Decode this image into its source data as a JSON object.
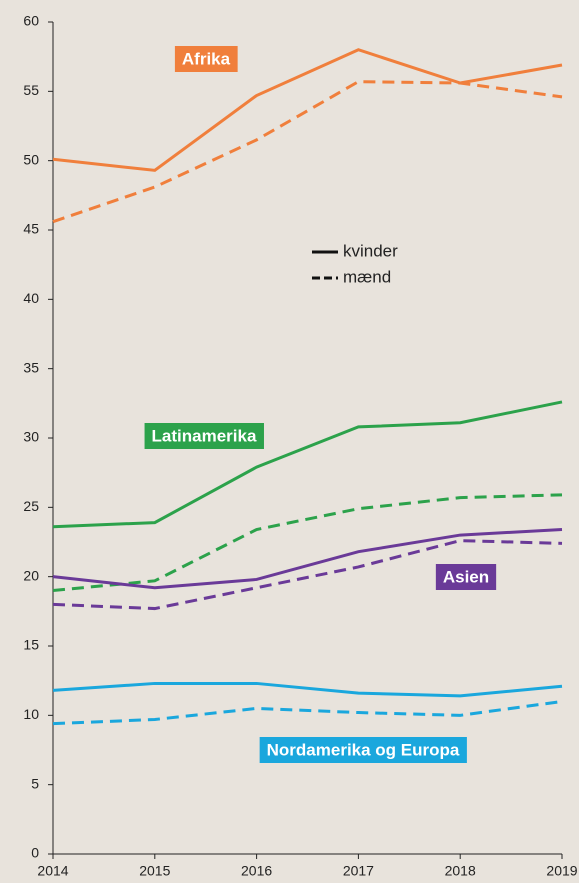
{
  "chart_data": {
    "type": "line",
    "x": [
      2014,
      2015,
      2016,
      2017,
      2018,
      2019
    ],
    "xlim": [
      2014,
      2019
    ],
    "xticks": [
      2014,
      2015,
      2016,
      2017,
      2018,
      2019
    ],
    "ylim": [
      0,
      60
    ],
    "yticks": [
      0,
      5,
      10,
      15,
      20,
      25,
      30,
      35,
      40,
      45,
      50,
      55,
      60
    ],
    "legend": [
      {
        "label": "kvinder",
        "dash": "solid"
      },
      {
        "label": "mænd",
        "dash": "dashed"
      }
    ],
    "series": [
      {
        "name": "Afrika",
        "color": "#f07f3c",
        "values": [
          [
            50.1,
            49.3,
            54.7,
            58.0,
            55.6,
            56.9
          ],
          [
            45.6,
            48.1,
            51.5,
            55.7,
            55.6,
            54.6
          ]
        ]
      },
      {
        "name": "Latinamerika",
        "color": "#2ca24b",
        "values": [
          [
            23.6,
            23.9,
            27.9,
            30.8,
            31.1,
            32.6
          ],
          [
            19.0,
            19.7,
            23.4,
            24.9,
            25.7,
            25.9
          ]
        ]
      },
      {
        "name": "Asien",
        "color": "#6a3a98",
        "values": [
          [
            20.0,
            19.2,
            19.8,
            21.8,
            23.0,
            23.4
          ],
          [
            18.0,
            17.7,
            19.2,
            20.7,
            22.6,
            22.4
          ]
        ]
      },
      {
        "name": "Nordamerika og Europa",
        "color": "#1aa7dd",
        "values": [
          [
            11.8,
            12.3,
            12.3,
            11.6,
            11.4,
            12.1
          ],
          [
            9.4,
            9.7,
            10.5,
            10.2,
            10.0,
            11.0
          ]
        ]
      }
    ]
  }
}
